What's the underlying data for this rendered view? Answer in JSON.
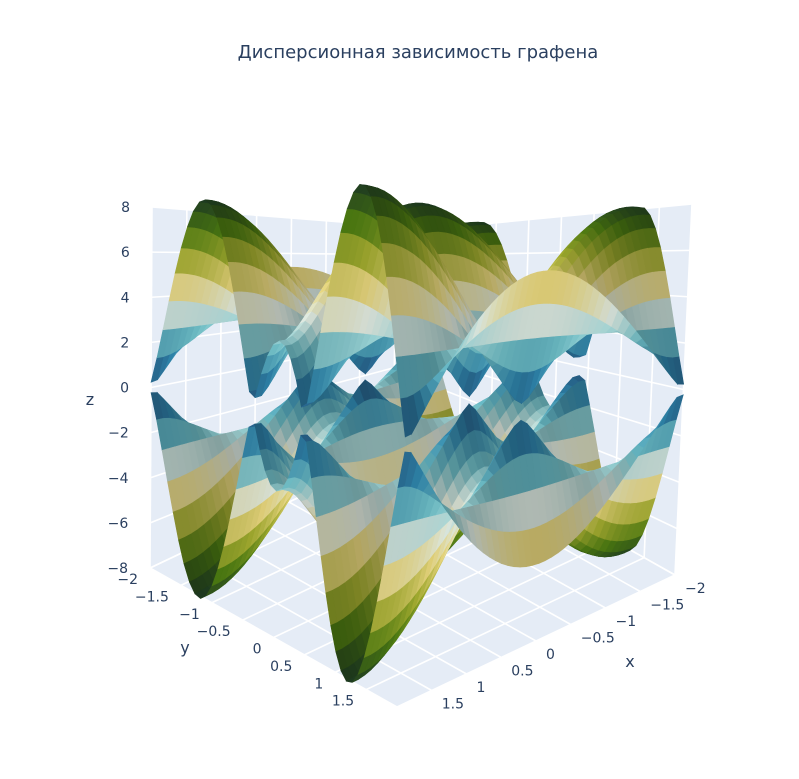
{
  "chart_data": {
    "type": "surface",
    "title": "Дисперсионная зависимость графена",
    "x_axis": {
      "label": "x",
      "range": [
        -2,
        2
      ],
      "ticks": [
        "−2",
        "−1.5",
        "−1",
        "−0.5",
        "0",
        "0.5",
        "1",
        "1.5"
      ]
    },
    "y_axis": {
      "label": "y",
      "range": [
        -2,
        2
      ],
      "ticks": [
        "−2",
        "−1.5",
        "−1",
        "−0.5",
        "0",
        "0.5",
        "1",
        "1.5"
      ]
    },
    "z_axis": {
      "label": "z",
      "range": [
        -8,
        8
      ],
      "ticks": [
        "8",
        "6",
        "4",
        "2",
        "0",
        "−2",
        "−4",
        "−6",
        "−8"
      ]
    },
    "surfaces": [
      {
        "band": "upper",
        "sign": 1
      },
      {
        "band": "lower",
        "sign": -1
      }
    ],
    "function": "E(x,y) = ±t·sqrt(1 + 4cos(a·x)cos(b·y) + 4cos²(b·y)), t=2.7",
    "colorscale": [
      "#254a78",
      "#2f86ad",
      "#6fc0c9",
      "#e6f0e6",
      "#eedc80",
      "#a6b030",
      "#4e7e12",
      "#1d3a22"
    ],
    "grid": true,
    "background": "#e5ecf6"
  }
}
